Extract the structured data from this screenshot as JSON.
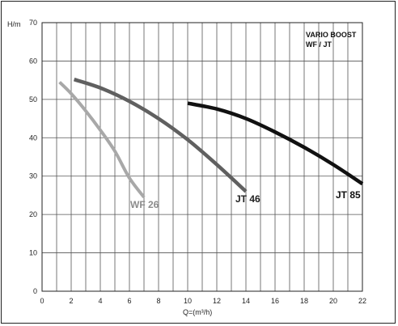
{
  "chart_data": {
    "type": "line",
    "title": "VARIO BOOST",
    "subtitle": "WF / JT",
    "xlabel": "Q=(m³/h)",
    "ylabel": "H/m",
    "xlim": [
      0,
      22
    ],
    "ylim": [
      0,
      70
    ],
    "x_ticks": [
      "0",
      "2",
      "4",
      "6",
      "8",
      "10",
      "12",
      "14",
      "16",
      "18",
      "20",
      "22"
    ],
    "y_ticks": [
      "0",
      "10",
      "20",
      "30",
      "40",
      "50",
      "60",
      "70"
    ],
    "grid": true,
    "series": [
      {
        "name": "WF 26",
        "color": "#a8a8a8",
        "x": [
          1.2,
          2.0,
          3.0,
          4.0,
          5.0,
          6.0,
          7.0
        ],
        "y": [
          54.5,
          51.5,
          47.0,
          42.0,
          36.5,
          29.5,
          24.5
        ]
      },
      {
        "name": "JT 46",
        "color": "#606060",
        "x": [
          2.2,
          4.0,
          6.0,
          8.0,
          10.0,
          12.0,
          14.0
        ],
        "y": [
          55.2,
          53.0,
          49.5,
          45.0,
          39.5,
          33.0,
          26.0
        ]
      },
      {
        "name": "JT 85",
        "color": "#111111",
        "x": [
          10.0,
          12.0,
          14.0,
          16.0,
          18.0,
          20.0,
          22.0
        ],
        "y": [
          49.0,
          47.5,
          45.0,
          41.5,
          37.5,
          33.0,
          28.0
        ]
      }
    ]
  }
}
